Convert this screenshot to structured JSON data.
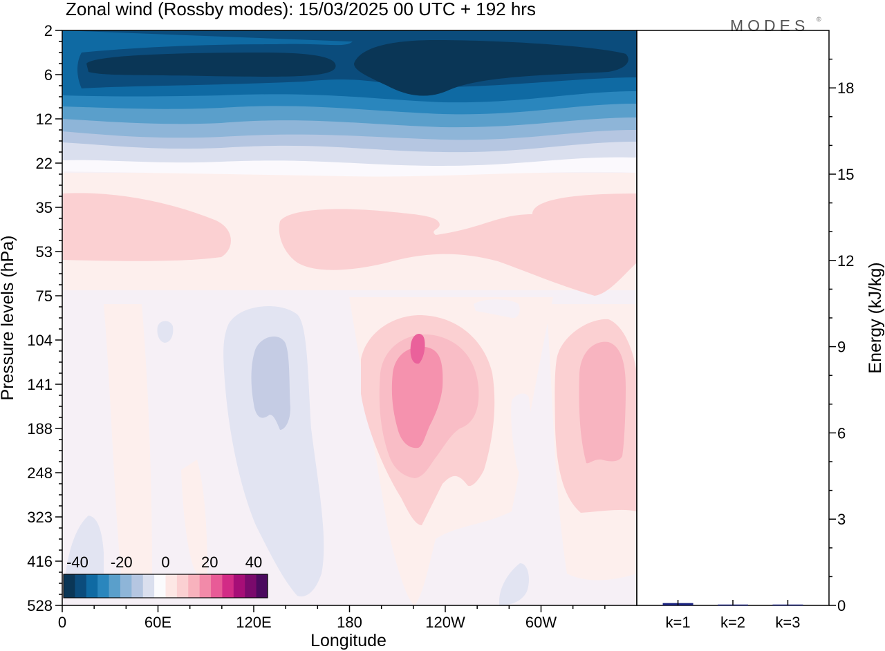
{
  "chart_data": [
    {
      "type": "heatmap",
      "title": "Zonal wind (Rossby modes):  15/03/2025  00 UTC  + 192 hrs",
      "xlabel": "Longitude",
      "ylabel": "Pressure levels (hPa)",
      "x_ticks": [
        "0",
        "60E",
        "120E",
        "180",
        "120W",
        "60W"
      ],
      "y_ticks": [
        "2",
        "6",
        "12",
        "22",
        "35",
        "53",
        "75",
        "104",
        "141",
        "188",
        "248",
        "323",
        "416",
        "528"
      ],
      "y_scale": "log",
      "colorbar": {
        "tick_labels": [
          "-40",
          "-20",
          "0",
          "20",
          "40"
        ],
        "colors": [
          "#0a3656",
          "#0b4c7c",
          "#0f6aa3",
          "#2a86bd",
          "#5a9fcb",
          "#8eb5d8",
          "#b5c6e1",
          "#dadfee",
          "#fbfbfd",
          "#fde7e5",
          "#fbd0d2",
          "#f8b2bd",
          "#f28aa9",
          "#e85b97",
          "#d22b86",
          "#a60e77",
          "#7a0a6c",
          "#4b0a5e"
        ]
      },
      "features": [
        {
          "label": "upper-level easterly jet core",
          "value_min": -40,
          "pressure_hPa": [
            3,
            8
          ],
          "longitude": [
            10,
            330
          ]
        },
        {
          "label": "positive anomaly near 110W",
          "value_max": 27,
          "pressure_hPa": [
            110,
            260
          ]
        },
        {
          "label": "negative anomaly near 125E",
          "value_min": -8,
          "pressure_hPa": [
            110,
            200
          ]
        }
      ]
    },
    {
      "type": "bar",
      "categories": [
        "k=1",
        "k=2",
        "k=3"
      ],
      "values": [
        0.08,
        0.03,
        0.03
      ],
      "ylabel": "Energy (kJ/kg)",
      "ylim": [
        0,
        20
      ],
      "y_ticks": [
        "0",
        "3",
        "6",
        "9",
        "12",
        "15",
        "18"
      ],
      "bar_color": "#1a237e"
    }
  ],
  "logo": {
    "text": "MODES",
    "mark": "©"
  }
}
